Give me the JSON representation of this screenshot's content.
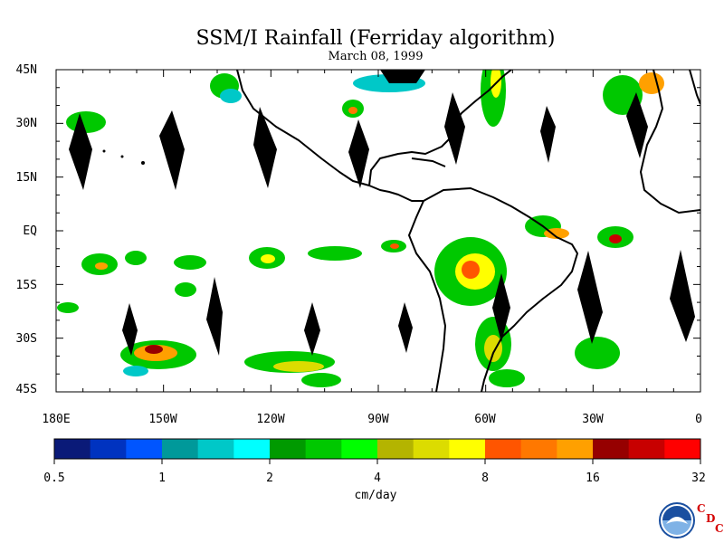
{
  "title": "SSM/I Rainfall (Ferriday algorithm)",
  "subtitle": "March 08, 1999",
  "lat_labels": [
    "45N",
    "30N",
    "15N",
    "EQ",
    "15S",
    "30S",
    "45S"
  ],
  "lon_labels": [
    "180E",
    "150W",
    "120W",
    "90W",
    "60W",
    "30W",
    "0"
  ],
  "colorbar": {
    "units": "cm/day",
    "tick_labels": [
      "0.5",
      "1",
      "2",
      "4",
      "8",
      "16",
      "32"
    ],
    "colors": [
      "#0a1a78",
      "#0033c0",
      "#0055ff",
      "#00999a",
      "#00c8c8",
      "#00ffff",
      "#009a00",
      "#00c800",
      "#00ff00",
      "#b4b400",
      "#dcdc00",
      "#ffff00",
      "#ff5500",
      "#ff7800",
      "#ffa000",
      "#960000",
      "#c80000",
      "#ff0000"
    ]
  },
  "missing_data_color": "#000000",
  "logo": {
    "name": "NOAA",
    "letters": [
      "C",
      "D",
      "C"
    ]
  }
}
